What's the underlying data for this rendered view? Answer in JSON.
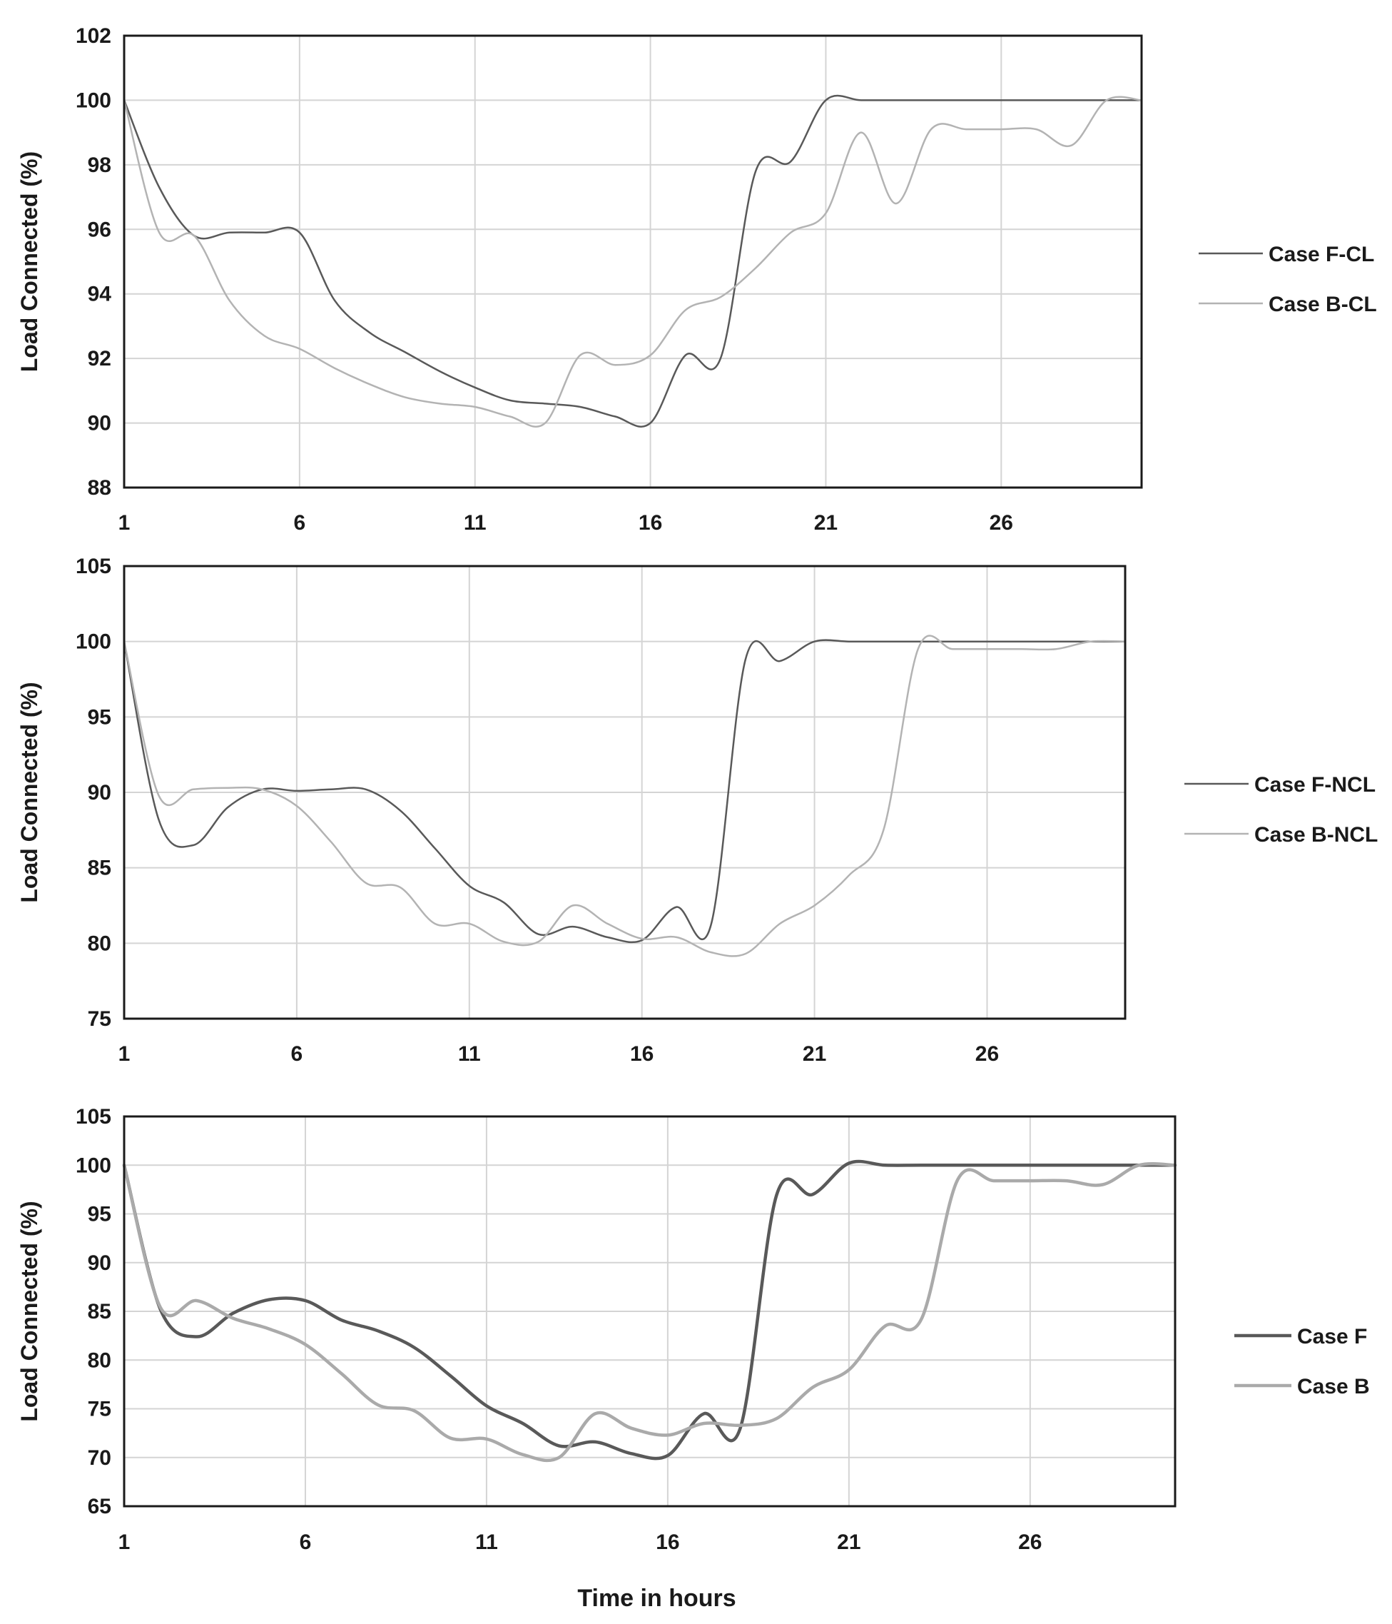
{
  "chart_data": [
    {
      "type": "line",
      "ylabel": "Load Connected (%)",
      "xlabel": "",
      "xlim": [
        1,
        30
      ],
      "ylim": [
        88,
        102
      ],
      "xticks": [
        1,
        6,
        11,
        16,
        21,
        26
      ],
      "yticks": [
        88,
        90,
        92,
        94,
        96,
        98,
        100,
        102
      ],
      "grid": true,
      "legend_position": "right",
      "x": [
        1,
        2,
        3,
        4,
        5,
        6,
        7,
        8,
        9,
        10,
        11,
        12,
        13,
        14,
        15,
        16,
        17,
        18,
        19,
        20,
        21,
        22,
        23,
        24,
        25,
        26,
        27,
        28,
        29,
        30
      ],
      "series": [
        {
          "name": "Case F-CL",
          "color": "#595959",
          "width": 2.5,
          "values": [
            100,
            97.3,
            95.8,
            95.9,
            95.9,
            95.9,
            93.8,
            92.8,
            92.2,
            91.6,
            91.1,
            90.7,
            90.6,
            90.5,
            90.2,
            90.0,
            92.1,
            92.0,
            97.8,
            98.1,
            100.0,
            100.0,
            100.0,
            100.0,
            100.0,
            100.0,
            100.0,
            100.0,
            100.0,
            100.0
          ]
        },
        {
          "name": "Case B-CL",
          "color": "#b3b3b3",
          "width": 2.5,
          "values": [
            100,
            95.9,
            95.8,
            93.8,
            92.7,
            92.3,
            91.7,
            91.2,
            90.8,
            90.6,
            90.5,
            90.2,
            90.0,
            92.1,
            91.8,
            92.1,
            93.5,
            93.9,
            94.8,
            95.9,
            96.5,
            99.0,
            96.8,
            99.1,
            99.1,
            99.1,
            99.1,
            98.6,
            100.0,
            100.0
          ]
        }
      ]
    },
    {
      "type": "line",
      "ylabel": "Load Connected (%)",
      "xlabel": "",
      "xlim": [
        1,
        30
      ],
      "ylim": [
        75,
        105
      ],
      "xticks": [
        1,
        6,
        11,
        16,
        21,
        26
      ],
      "yticks": [
        75,
        80,
        85,
        90,
        95,
        100,
        105
      ],
      "grid": true,
      "legend_position": "right",
      "x": [
        1,
        2,
        3,
        4,
        5,
        6,
        7,
        8,
        9,
        10,
        11,
        12,
        13,
        14,
        15,
        16,
        17,
        18,
        19,
        20,
        21,
        22,
        23,
        24,
        25,
        26,
        27,
        28,
        29,
        30
      ],
      "series": [
        {
          "name": "Case F-NCL",
          "color": "#595959",
          "width": 2.5,
          "values": [
            100,
            88.2,
            86.5,
            89.0,
            90.2,
            90.1,
            90.2,
            90.2,
            88.8,
            86.3,
            83.8,
            82.7,
            80.6,
            81.1,
            80.4,
            80.2,
            82.4,
            81.2,
            98.8,
            98.7,
            100.0,
            100.0,
            100.0,
            100.0,
            100.0,
            100.0,
            100.0,
            100.0,
            100.0,
            100.0
          ]
        },
        {
          "name": "Case B-NCL",
          "color": "#b3b3b3",
          "width": 2.5,
          "values": [
            100,
            89.8,
            90.2,
            90.3,
            90.2,
            89.1,
            86.7,
            84.0,
            83.7,
            81.3,
            81.3,
            80.1,
            80.1,
            82.5,
            81.3,
            80.3,
            80.4,
            79.4,
            79.3,
            81.3,
            82.5,
            84.5,
            87.5,
            99.5,
            99.5,
            99.5,
            99.5,
            99.5,
            100.0,
            100.0
          ]
        }
      ]
    },
    {
      "type": "line",
      "ylabel": "Load Connected (%)",
      "xlabel": "Time in hours",
      "xlim": [
        1,
        30
      ],
      "ylim": [
        65,
        105
      ],
      "xticks": [
        1,
        6,
        11,
        16,
        21,
        26
      ],
      "yticks": [
        65,
        70,
        75,
        80,
        85,
        90,
        95,
        100,
        105
      ],
      "grid": true,
      "legend_position": "right",
      "x": [
        1,
        2,
        3,
        4,
        5,
        6,
        7,
        8,
        9,
        10,
        11,
        12,
        13,
        14,
        15,
        16,
        17,
        18,
        19,
        20,
        21,
        22,
        23,
        24,
        25,
        26,
        27,
        28,
        29,
        30
      ],
      "series": [
        {
          "name": "Case F",
          "color": "#595959",
          "width": 4.5,
          "values": [
            100,
            85.2,
            82.4,
            84.8,
            86.2,
            86.1,
            84.1,
            83.0,
            81.3,
            78.4,
            75.3,
            73.5,
            71.2,
            71.6,
            70.4,
            70.2,
            74.5,
            73.0,
            96.9,
            97.0,
            100.2,
            100.0,
            100.0,
            100.0,
            100.0,
            100.0,
            100.0,
            100.0,
            100.0,
            100.0
          ]
        },
        {
          "name": "Case B",
          "color": "#aaaaaa",
          "width": 4.5,
          "values": [
            100,
            85.4,
            86.1,
            84.3,
            83.2,
            81.6,
            78.6,
            75.4,
            74.8,
            72.0,
            71.9,
            70.3,
            70.0,
            74.5,
            73.0,
            72.3,
            73.5,
            73.3,
            74.0,
            77.2,
            79.0,
            83.5,
            84.2,
            98.5,
            98.4,
            98.4,
            98.4,
            98.0,
            100.0,
            100.0
          ]
        }
      ]
    }
  ]
}
